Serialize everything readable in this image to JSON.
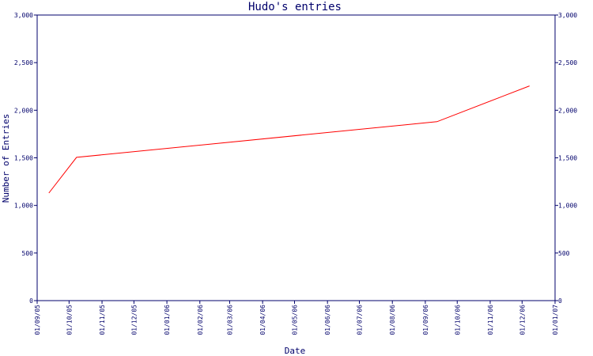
{
  "chart_data": {
    "type": "line",
    "title": "Hudo's entries",
    "xlabel": "Date",
    "ylabel": "Number of Entries",
    "ylim": [
      0,
      3000
    ],
    "y_ticks": [
      "0",
      "500",
      "1,000",
      "1,500",
      "2,000",
      "2,500",
      "3,000"
    ],
    "y_tick_values": [
      0,
      500,
      1000,
      1500,
      2000,
      2500,
      3000
    ],
    "x_ticks": [
      "01/09/05",
      "01/10/05",
      "01/11/05",
      "01/12/05",
      "01/01/06",
      "01/02/06",
      "01/03/06",
      "01/04/06",
      "01/05/06",
      "01/06/06",
      "01/07/06",
      "01/08/06",
      "01/09/06",
      "01/10/06",
      "01/11/06",
      "01/12/06",
      "01/01/07"
    ],
    "x_tick_dates": [
      "2005-09-01",
      "2005-10-01",
      "2005-11-01",
      "2005-12-01",
      "2006-01-01",
      "2006-02-01",
      "2006-03-01",
      "2006-04-01",
      "2006-05-01",
      "2006-06-01",
      "2006-07-01",
      "2006-08-01",
      "2006-09-01",
      "2006-10-01",
      "2006-11-01",
      "2006-12-01",
      "2007-01-01"
    ],
    "xlim": [
      "2005-09-01",
      "2007-01-01"
    ],
    "grid": false,
    "series": [
      {
        "points": [
          {
            "x": "2005-09-12",
            "y": 1130
          },
          {
            "x": "2005-10-08",
            "y": 1505
          },
          {
            "x": "2006-09-12",
            "y": 1880
          },
          {
            "x": "2006-12-08",
            "y": 2255
          }
        ],
        "color": "#ff0000"
      }
    ],
    "axis_color": "#00006b"
  }
}
